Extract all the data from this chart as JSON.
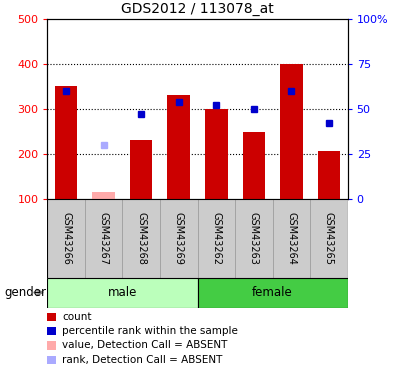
{
  "title": "GDS2012 / 113078_at",
  "samples": [
    "GSM43266",
    "GSM43267",
    "GSM43268",
    "GSM43269",
    "GSM43262",
    "GSM43263",
    "GSM43264",
    "GSM43265"
  ],
  "groups": [
    "male",
    "male",
    "male",
    "male",
    "female",
    "female",
    "female",
    "female"
  ],
  "count_values": [
    350,
    115,
    230,
    330,
    300,
    248,
    400,
    207
  ],
  "count_absent": [
    false,
    true,
    false,
    false,
    false,
    false,
    false,
    false
  ],
  "rank_values": [
    60,
    30,
    47,
    54,
    52,
    50,
    60,
    42
  ],
  "rank_absent": [
    false,
    true,
    false,
    false,
    false,
    false,
    false,
    false
  ],
  "bar_color": "#cc0000",
  "bar_absent_color": "#ffaaaa",
  "dot_color": "#0000cc",
  "dot_absent_color": "#aaaaff",
  "left_ylim": [
    100,
    500
  ],
  "right_ylim": [
    0,
    100
  ],
  "left_yticks": [
    100,
    200,
    300,
    400,
    500
  ],
  "right_yticks": [
    0,
    25,
    50,
    75,
    100
  ],
  "left_ytick_labels": [
    "100",
    "200",
    "300",
    "400",
    "500"
  ],
  "right_ytick_labels": [
    "0",
    "25",
    "50",
    "75",
    "100%"
  ],
  "grid_values": [
    200,
    300,
    400
  ],
  "male_color": "#bbffbb",
  "female_color": "#44cc44",
  "label_bg": "#cccccc",
  "legend_items": [
    {
      "label": "count",
      "color": "#cc0000"
    },
    {
      "label": "percentile rank within the sample",
      "color": "#0000cc"
    },
    {
      "label": "value, Detection Call = ABSENT",
      "color": "#ffaaaa"
    },
    {
      "label": "rank, Detection Call = ABSENT",
      "color": "#aaaaff"
    }
  ]
}
